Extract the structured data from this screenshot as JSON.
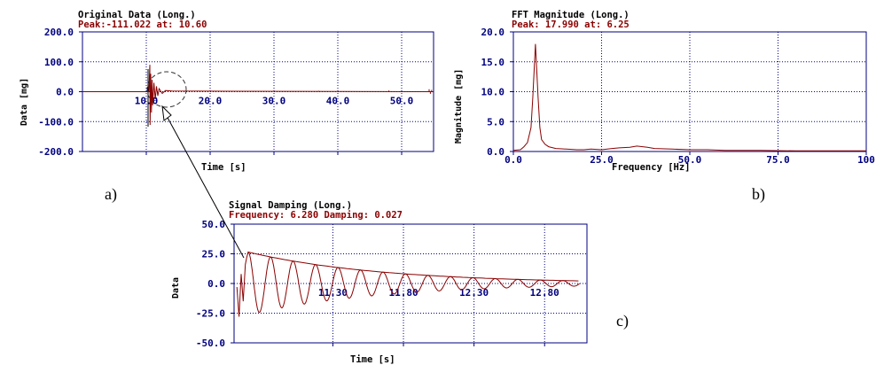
{
  "colors": {
    "axis": "#000080",
    "grid": "#000080",
    "signal": "#8b0000",
    "title": "#000000",
    "peak": "#8b0000",
    "annotation": "#000000"
  },
  "panels": {
    "a": {
      "label": "a)"
    },
    "b": {
      "label": "b)"
    },
    "c": {
      "label": "c)"
    }
  },
  "chart_data": [
    {
      "id": "a",
      "type": "line",
      "title": "Original Data (Long.)",
      "subtitle": "Peak:-111.022  at: 10.60",
      "xlabel": "Time [s]",
      "ylabel": "Data [mg]",
      "xlim": [
        0,
        55
      ],
      "ylim": [
        -200,
        200
      ],
      "xticks": [
        10,
        20,
        30,
        40,
        50
      ],
      "xtick_labels": [
        "10.0",
        "20.0",
        "30.0",
        "40.0",
        "50.0"
      ],
      "yticks": [
        -200,
        -100,
        0,
        100,
        200
      ],
      "ytick_labels": [
        "-200.0",
        "-100.0",
        "0.0",
        "100.0",
        "200.0"
      ],
      "grid": true,
      "series": [
        {
          "x": [
            0,
            10.4,
            10.55,
            10.6,
            10.7,
            10.8,
            10.9,
            11.0,
            11.2,
            11.4,
            11.6,
            11.8,
            12.0,
            12.5,
            13,
            14,
            55
          ],
          "y": [
            0,
            0,
            90,
            -111,
            60,
            -70,
            40,
            -45,
            30,
            -25,
            18,
            -14,
            10,
            -6,
            4,
            2,
            0
          ]
        }
      ]
    },
    {
      "id": "b",
      "type": "line",
      "title": "FFT Magnitude (Long.)",
      "subtitle": "Peak: 17.990   at: 6.25",
      "xlabel": "Frequency [Hz]",
      "ylabel": "Magnitude [mg]",
      "xlim": [
        0,
        100
      ],
      "ylim": [
        0,
        20
      ],
      "xticks": [
        0,
        25,
        50,
        75,
        100
      ],
      "xtick_labels": [
        "0.0",
        "25.0",
        "50.0",
        "75.0",
        "100"
      ],
      "yticks": [
        0,
        5,
        10,
        15,
        20
      ],
      "ytick_labels": [
        "0.0",
        "5.0",
        "10.0",
        "15.0",
        "20.0"
      ],
      "grid": true,
      "series": [
        {
          "x": [
            0,
            2,
            3,
            4,
            5,
            5.5,
            6,
            6.25,
            6.5,
            7,
            7.5,
            8,
            9,
            10,
            12,
            15,
            18,
            20,
            22,
            25,
            28,
            30,
            33,
            35,
            38,
            40,
            45,
            50,
            55,
            60,
            70,
            80,
            90,
            100
          ],
          "y": [
            0.2,
            0.3,
            0.8,
            1.5,
            4,
            9,
            15,
            17.99,
            15,
            9,
            4,
            2,
            1.2,
            0.8,
            0.5,
            0.4,
            0.3,
            0.3,
            0.4,
            0.3,
            0.5,
            0.6,
            0.7,
            0.9,
            0.7,
            0.5,
            0.4,
            0.3,
            0.3,
            0.2,
            0.2,
            0.1,
            0.1,
            0.1
          ]
        }
      ]
    },
    {
      "id": "c",
      "type": "line",
      "title": "Signal Damping (Long.)",
      "subtitle": "Frequency: 6.280  Damping: 0.027",
      "xlabel": "Time [s]",
      "ylabel": "Data",
      "xlim": [
        10.6,
        13.1
      ],
      "ylim": [
        -50,
        50
      ],
      "xticks": [
        11.3,
        11.8,
        12.3,
        12.8
      ],
      "xtick_labels": [
        "11.30",
        "11.80",
        "12.30",
        "12.80"
      ],
      "yticks": [
        -50,
        -25,
        0,
        25,
        50
      ],
      "ytick_labels": [
        "-50.0",
        "-25.0",
        "0.0",
        "25.0",
        "50.0"
      ],
      "grid": true,
      "signal": {
        "t0": 10.7,
        "t1": 13.05,
        "amplitude": 26.5,
        "frequency": 6.28,
        "damping": 0.027,
        "onset_end": 10.7,
        "onset_start": 10.62
      }
    }
  ]
}
